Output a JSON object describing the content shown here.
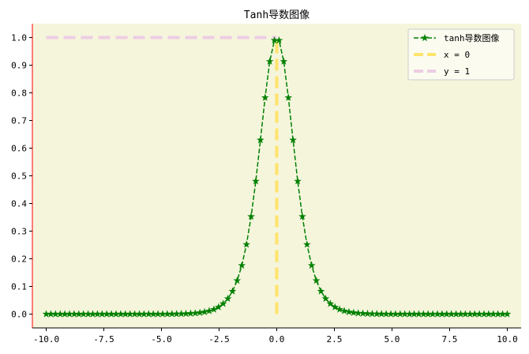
{
  "chart_data": {
    "type": "line",
    "title": "Tanh导数图像",
    "xlabel": "",
    "ylabel": "",
    "xlim": [
      -10.6,
      10.6
    ],
    "ylim": [
      -0.05,
      1.05
    ],
    "xticks": [
      -10.0,
      -7.5,
      -5.0,
      -2.5,
      0.0,
      2.5,
      5.0,
      7.5,
      10.0
    ],
    "xtick_labels": [
      "-10.0",
      "-7.5",
      "-5.0",
      "-2.5",
      "0.0",
      "2.5",
      "5.0",
      "7.5",
      "10.0"
    ],
    "yticks": [
      0.0,
      0.1,
      0.2,
      0.3,
      0.4,
      0.5,
      0.6,
      0.7,
      0.8,
      0.9,
      1.0
    ],
    "ytick_labels": [
      "0.0",
      "0.1",
      "0.2",
      "0.3",
      "0.4",
      "0.5",
      "0.6",
      "0.7",
      "0.8",
      "0.9",
      "1.0"
    ],
    "grid": false,
    "legend_position": "top-right",
    "background_color": "#f5f5dc",
    "series": [
      {
        "name": "tanh导数图像",
        "color": "#008000",
        "style": "dashed",
        "marker": "star",
        "function": "1 - tanh(x)^2",
        "x_start": -10.0,
        "x_end": 10.0,
        "num_points": 100
      },
      {
        "name": "x = 0",
        "color": "#ffe46b",
        "style": "dashed",
        "x": [
          0.0,
          0.0
        ],
        "y": [
          0.0,
          1.0
        ]
      },
      {
        "name": "y = 1",
        "color": "#edcde3",
        "style": "dashed",
        "x": [
          -10.0,
          0.0
        ],
        "y": [
          1.0,
          1.0
        ]
      }
    ]
  }
}
